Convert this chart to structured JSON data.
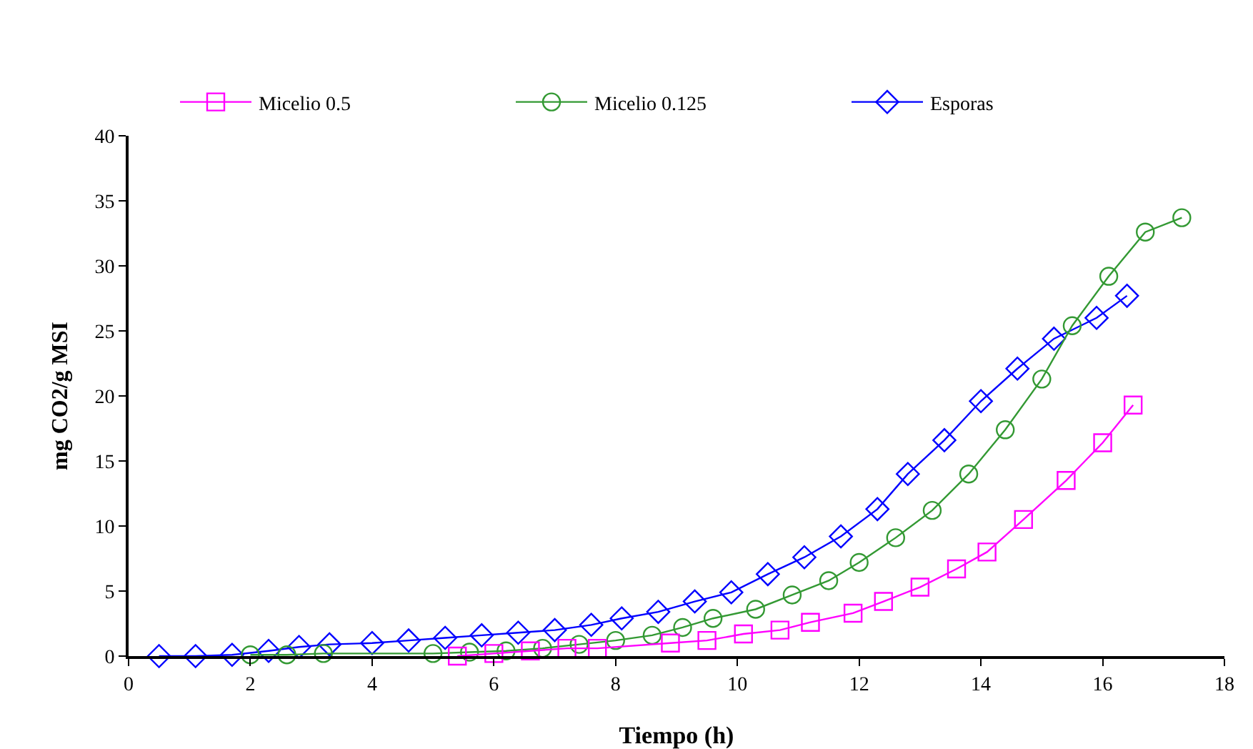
{
  "chart_data": {
    "type": "line",
    "xlabel": "Tiempo (h)",
    "ylabel": "mg CO2/g MSI",
    "xlim": [
      0,
      18
    ],
    "xticks": [
      0,
      2,
      4,
      6,
      8,
      10,
      12,
      14,
      16,
      18
    ],
    "ylim": [
      0,
      40
    ],
    "yticks": [
      0,
      5,
      10,
      15,
      20,
      25,
      30,
      35,
      40
    ],
    "grid": false,
    "legend": "top",
    "series": [
      {
        "name": "Micelio 0.5",
        "color": "#ff00ff",
        "marker": "square",
        "x": [
          5.4,
          6.0,
          6.6,
          7.2,
          7.7,
          8.9,
          9.5,
          10.1,
          10.7,
          11.2,
          11.9,
          12.4,
          13.0,
          13.6,
          14.1,
          14.7,
          15.4,
          16.0,
          16.5
        ],
        "values": [
          0,
          0.2,
          0.4,
          0.6,
          0.6,
          1.0,
          1.2,
          1.7,
          2.0,
          2.6,
          3.3,
          4.2,
          5.3,
          6.7,
          8.0,
          10.5,
          13.5,
          16.4,
          19.3
        ]
      },
      {
        "name": "Micelio 0.125",
        "color": "#339933",
        "marker": "circle",
        "x": [
          2.0,
          2.6,
          3.2,
          5.0,
          5.6,
          6.2,
          6.8,
          7.4,
          8.0,
          8.6,
          9.1,
          9.6,
          10.3,
          10.9,
          11.5,
          12.0,
          12.6,
          13.2,
          13.8,
          14.4,
          15.0,
          15.5,
          16.1,
          16.7,
          17.3
        ],
        "values": [
          0.1,
          0.1,
          0.2,
          0.2,
          0.3,
          0.4,
          0.6,
          0.9,
          1.2,
          1.6,
          2.2,
          2.9,
          3.6,
          4.7,
          5.8,
          7.2,
          9.1,
          11.2,
          14.0,
          17.4,
          21.3,
          25.4,
          29.2,
          32.6,
          33.7
        ]
      },
      {
        "name": "Esporas",
        "color": "#0000ff",
        "marker": "diamond",
        "x": [
          0.5,
          1.1,
          1.7,
          2.3,
          2.8,
          3.3,
          4.0,
          4.6,
          5.2,
          5.8,
          6.4,
          7.0,
          7.6,
          8.1,
          8.7,
          9.3,
          9.9,
          10.5,
          11.1,
          11.7,
          12.3,
          12.8,
          13.4,
          14.0,
          14.6,
          15.2,
          15.9,
          16.4
        ],
        "values": [
          0,
          0,
          0.1,
          0.4,
          0.7,
          0.9,
          1.0,
          1.2,
          1.4,
          1.6,
          1.8,
          2.0,
          2.4,
          2.9,
          3.4,
          4.2,
          4.9,
          6.3,
          7.6,
          9.2,
          11.3,
          14.0,
          16.6,
          19.6,
          22.1,
          24.4,
          26.0,
          27.7
        ]
      }
    ]
  }
}
